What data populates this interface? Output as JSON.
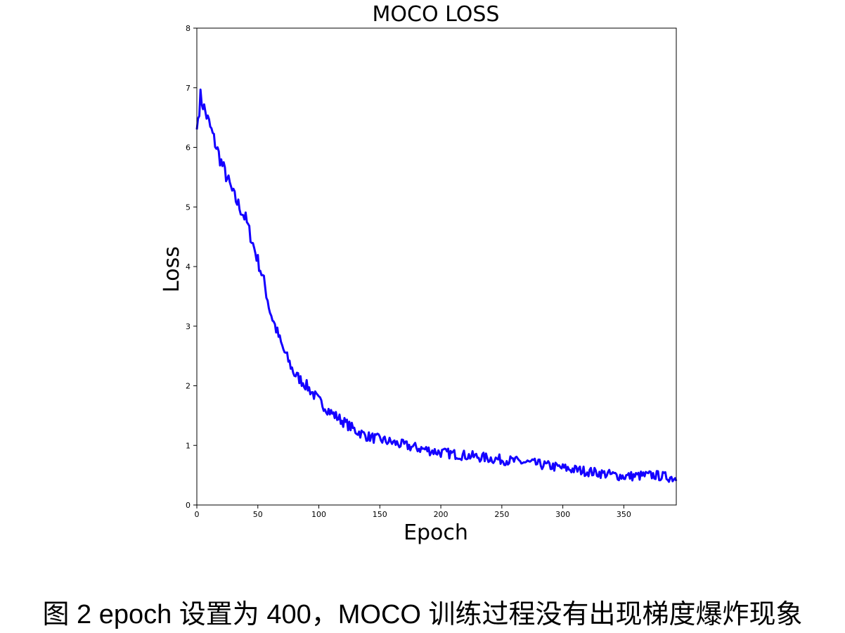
{
  "chart_data": {
    "type": "line",
    "title": "MOCO LOSS",
    "xlabel": "Epoch",
    "ylabel": "Loss",
    "xlim": [
      0,
      393
    ],
    "ylim": [
      0,
      8
    ],
    "xticks": [
      0,
      50,
      100,
      150,
      200,
      250,
      300,
      350
    ],
    "yticks": [
      0,
      1,
      2,
      3,
      4,
      5,
      6,
      7,
      8
    ],
    "grid": false,
    "series": [
      {
        "name": "MOCO loss",
        "color": "#1400ff",
        "x": [
          0,
          3,
          10,
          20,
          30,
          40,
          50,
          55,
          60,
          70,
          80,
          90,
          100,
          110,
          120,
          130,
          140,
          150,
          160,
          175,
          200,
          225,
          250,
          275,
          300,
          325,
          350,
          375,
          393
        ],
        "y": [
          6.3,
          6.85,
          6.4,
          5.75,
          5.2,
          4.8,
          4.1,
          3.75,
          3.25,
          2.65,
          2.2,
          2.0,
          1.75,
          1.55,
          1.4,
          1.25,
          1.15,
          1.1,
          1.05,
          0.98,
          0.88,
          0.82,
          0.76,
          0.7,
          0.62,
          0.55,
          0.48,
          0.5,
          0.45
        ],
        "noise": 0.13
      }
    ]
  },
  "caption": "图 2 epoch 设置为 400，MOCO 训练过程没有出现梯度爆炸现象"
}
